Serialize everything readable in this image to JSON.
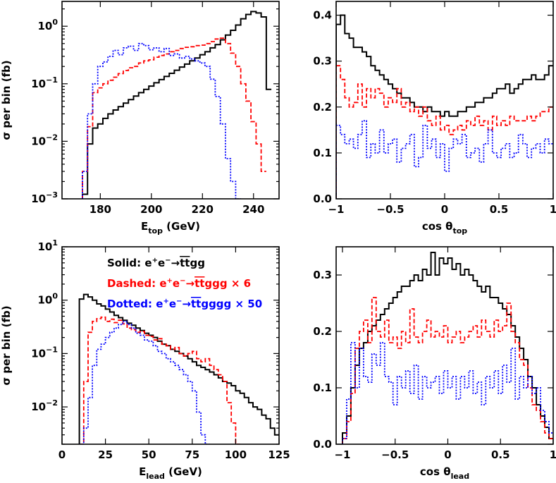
{
  "figure": {
    "legend": {
      "solid": {
        "prefix": "Solid:",
        "process": "e+e- → tt̄gg",
        "color": "#000000"
      },
      "dashed": {
        "prefix": "Dashed:",
        "process": "e+e- → tt̄ggg × 6",
        "color": "#ff0000"
      },
      "dotted": {
        "prefix": "Dotted:",
        "process": "e+e- → tt̄gggg × 50",
        "color": "#0000ff"
      }
    },
    "colors": {
      "solid": "#000000",
      "dashed": "#ff0000",
      "dotted": "#0000ff"
    }
  },
  "chart_data": [
    {
      "id": "e_top",
      "type": "line",
      "step": true,
      "xlabel": "E_top (GeV)",
      "ylabel": "σ per bin (fb)",
      "yscale": "log",
      "xlim": [
        165,
        250
      ],
      "ylim": [
        0.001,
        2.7
      ],
      "xticks": [
        180,
        200,
        220,
        240
      ],
      "yticks": [
        0.001,
        0.01,
        0.1,
        1
      ],
      "ytick_labels": [
        "10^-3",
        "10^-2",
        "10^-1",
        "10^0"
      ],
      "x_start": 173,
      "x_step": 2,
      "series": [
        {
          "style": "solid",
          "values": [
            0.0012,
            0.009,
            0.017,
            0.02,
            0.025,
            0.03,
            0.035,
            0.04,
            0.046,
            0.053,
            0.061,
            0.07,
            0.08,
            0.091,
            0.104,
            0.118,
            0.134,
            0.152,
            0.172,
            0.195,
            0.22,
            0.25,
            0.28,
            0.32,
            0.36,
            0.42,
            0.48,
            0.58,
            0.7,
            0.85,
            1.05,
            1.35,
            1.6,
            1.8,
            1.7,
            1.45,
            0.08
          ]
        },
        {
          "style": "dashed",
          "values": [
            0.003,
            0.018,
            0.07,
            0.085,
            0.1,
            0.115,
            0.13,
            0.15,
            0.17,
            0.19,
            0.2,
            0.23,
            0.25,
            0.26,
            0.29,
            0.31,
            0.33,
            0.36,
            0.38,
            0.41,
            0.43,
            0.44,
            0.46,
            0.47,
            0.5,
            0.54,
            0.6,
            0.62,
            0.5,
            0.34,
            0.2,
            0.1,
            0.05,
            0.022,
            0.009,
            0.003
          ]
        },
        {
          "style": "dotted",
          "values": [
            0.003,
            0.03,
            0.1,
            0.2,
            0.24,
            0.3,
            0.38,
            0.32,
            0.42,
            0.45,
            0.38,
            0.5,
            0.46,
            0.39,
            0.42,
            0.36,
            0.41,
            0.31,
            0.33,
            0.28,
            0.3,
            0.27,
            0.25,
            0.23,
            0.2,
            0.12,
            0.06,
            0.02,
            0.005,
            0.002,
            0.001
          ]
        }
      ]
    },
    {
      "id": "cos_top",
      "type": "line",
      "step": true,
      "xlabel": "cos θ_top",
      "ylabel": "",
      "yscale": "linear",
      "xlim": [
        -1,
        1
      ],
      "ylim": [
        0,
        0.43
      ],
      "xticks": [
        -1,
        -0.5,
        0,
        0.5,
        1
      ],
      "xtick_labels": [
        "−1",
        "−0.5",
        "0",
        "0.5",
        "1"
      ],
      "yticks": [
        0,
        0.1,
        0.2,
        0.3,
        0.4
      ],
      "ytick_labels": [
        "0.0",
        "0.1",
        "0.2",
        "0.3",
        "0.4"
      ],
      "x_start": -1,
      "x_step": 0.04,
      "series": [
        {
          "style": "solid",
          "values": [
            0.38,
            0.4,
            0.36,
            0.35,
            0.33,
            0.33,
            0.32,
            0.31,
            0.29,
            0.28,
            0.27,
            0.26,
            0.25,
            0.24,
            0.23,
            0.22,
            0.22,
            0.21,
            0.2,
            0.2,
            0.19,
            0.2,
            0.19,
            0.19,
            0.18,
            0.19,
            0.18,
            0.18,
            0.19,
            0.19,
            0.2,
            0.2,
            0.21,
            0.21,
            0.22,
            0.22,
            0.23,
            0.24,
            0.24,
            0.25,
            0.23,
            0.24,
            0.25,
            0.26,
            0.26,
            0.27,
            0.26,
            0.26,
            0.27,
            0.29
          ]
        },
        {
          "style": "dashed",
          "values": [
            0.29,
            0.26,
            0.22,
            0.2,
            0.21,
            0.25,
            0.2,
            0.24,
            0.22,
            0.24,
            0.23,
            0.2,
            0.22,
            0.21,
            0.24,
            0.2,
            0.21,
            0.19,
            0.2,
            0.18,
            0.2,
            0.17,
            0.16,
            0.18,
            0.15,
            0.16,
            0.14,
            0.15,
            0.16,
            0.15,
            0.17,
            0.16,
            0.18,
            0.16,
            0.17,
            0.15,
            0.18,
            0.16,
            0.17,
            0.16,
            0.18,
            0.17,
            0.17,
            0.17,
            0.18,
            0.17,
            0.18,
            0.19,
            0.19,
            0.2
          ]
        },
        {
          "style": "dotted",
          "values": [
            0.16,
            0.14,
            0.12,
            0.13,
            0.11,
            0.14,
            0.17,
            0.09,
            0.12,
            0.1,
            0.15,
            0.1,
            0.12,
            0.13,
            0.08,
            0.11,
            0.12,
            0.14,
            0.07,
            0.09,
            0.16,
            0.11,
            0.13,
            0.09,
            0.12,
            0.06,
            0.11,
            0.13,
            0.12,
            0.14,
            0.09,
            0.1,
            0.11,
            0.08,
            0.12,
            0.15,
            0.1,
            0.09,
            0.11,
            0.12,
            0.09,
            0.1,
            0.14,
            0.12,
            0.09,
            0.11,
            0.12,
            0.1,
            0.13,
            0.12
          ]
        }
      ]
    },
    {
      "id": "e_lead",
      "type": "line",
      "step": true,
      "xlabel": "E_lead (GeV)",
      "ylabel": "σ per bin (fb)",
      "yscale": "log",
      "xlim": [
        0,
        125
      ],
      "ylim": [
        0.002,
        10
      ],
      "xticks": [
        0,
        25,
        50,
        75,
        100,
        125
      ],
      "yticks": [
        0.01,
        0.1,
        1,
        10
      ],
      "ytick_labels": [
        "10^-2",
        "10^-1",
        "10^0",
        "10^1"
      ],
      "x_start": 10,
      "x_step": 2.5,
      "series": [
        {
          "style": "solid",
          "values": [
            1.05,
            1.28,
            1.15,
            1.0,
            0.85,
            0.78,
            0.68,
            0.6,
            0.52,
            0.47,
            0.42,
            0.37,
            0.34,
            0.3,
            0.27,
            0.24,
            0.22,
            0.2,
            0.17,
            0.15,
            0.14,
            0.12,
            0.11,
            0.1,
            0.09,
            0.08,
            0.07,
            0.06,
            0.055,
            0.05,
            0.045,
            0.04,
            0.035,
            0.03,
            0.028,
            0.025,
            0.02,
            0.018,
            0.015,
            0.012,
            0.01,
            0.009,
            0.007,
            0.006,
            0.004,
            0.003
          ]
        },
        {
          "style": "dashed",
          "values": [
            0.002,
            0.03,
            0.25,
            0.4,
            0.45,
            0.48,
            0.4,
            0.44,
            0.38,
            0.42,
            0.36,
            0.3,
            0.28,
            0.25,
            0.26,
            0.22,
            0.21,
            0.18,
            0.19,
            0.15,
            0.14,
            0.12,
            0.13,
            0.1,
            0.09,
            0.1,
            0.11,
            0.08,
            0.07,
            0.08,
            0.06,
            0.05,
            0.04,
            0.03,
            0.012,
            0.005,
            0.002
          ]
        },
        {
          "style": "dotted",
          "values": [
            0.002,
            0.004,
            0.015,
            0.06,
            0.12,
            0.15,
            0.2,
            0.25,
            0.3,
            0.35,
            0.4,
            0.35,
            0.3,
            0.24,
            0.22,
            0.18,
            0.17,
            0.14,
            0.11,
            0.1,
            0.08,
            0.07,
            0.06,
            0.05,
            0.04,
            0.03,
            0.02,
            0.008,
            0.003,
            0.002
          ]
        }
      ]
    },
    {
      "id": "cos_lead",
      "type": "line",
      "step": true,
      "xlabel": "cos θ_lead",
      "ylabel": "",
      "yscale": "linear",
      "xlim": [
        -1.06,
        1
      ],
      "ylim": [
        0,
        0.35
      ],
      "xticks": [
        -1,
        -0.5,
        0,
        0.5,
        1
      ],
      "xtick_labels": [
        "−1",
        "−0.5",
        "0",
        "0.5",
        "1"
      ],
      "yticks": [
        0,
        0.1,
        0.2,
        0.3
      ],
      "ytick_labels": [
        "0.0",
        "0.1",
        "0.2",
        "0.3"
      ],
      "x_start": -1,
      "x_step": 0.04,
      "series": [
        {
          "style": "solid",
          "values": [
            0.02,
            0.05,
            0.1,
            0.14,
            0.17,
            0.18,
            0.2,
            0.21,
            0.22,
            0.23,
            0.24,
            0.25,
            0.26,
            0.27,
            0.28,
            0.28,
            0.29,
            0.3,
            0.29,
            0.31,
            0.3,
            0.34,
            0.3,
            0.33,
            0.32,
            0.33,
            0.31,
            0.32,
            0.3,
            0.31,
            0.3,
            0.29,
            0.28,
            0.27,
            0.28,
            0.26,
            0.26,
            0.25,
            0.24,
            0.23,
            0.21,
            0.19,
            0.17,
            0.15,
            0.12,
            0.1,
            0.07,
            0.05,
            0.03,
            0.01
          ]
        },
        {
          "style": "dashed",
          "values": [
            0.01,
            0.04,
            0.09,
            0.17,
            0.2,
            0.22,
            0.18,
            0.26,
            0.2,
            0.19,
            0.22,
            0.18,
            0.19,
            0.17,
            0.2,
            0.18,
            0.24,
            0.19,
            0.18,
            0.2,
            0.22,
            0.19,
            0.2,
            0.19,
            0.21,
            0.18,
            0.19,
            0.2,
            0.18,
            0.19,
            0.2,
            0.21,
            0.19,
            0.22,
            0.2,
            0.19,
            0.22,
            0.2,
            0.21,
            0.25,
            0.2,
            0.18,
            0.15,
            0.14,
            0.1,
            0.07,
            0.06,
            0.04,
            0.02,
            0.01
          ]
        },
        {
          "style": "dotted",
          "values": [
            0.01,
            0.08,
            0.18,
            0.1,
            0.17,
            0.12,
            0.11,
            0.16,
            0.14,
            0.18,
            0.12,
            0.11,
            0.07,
            0.12,
            0.1,
            0.13,
            0.09,
            0.14,
            0.08,
            0.12,
            0.1,
            0.11,
            0.12,
            0.09,
            0.13,
            0.1,
            0.12,
            0.08,
            0.12,
            0.1,
            0.13,
            0.09,
            0.11,
            0.07,
            0.12,
            0.1,
            0.13,
            0.09,
            0.14,
            0.11,
            0.17,
            0.08,
            0.12,
            0.1,
            0.12,
            0.09,
            0.1,
            0.06,
            0.04,
            0.02
          ]
        }
      ]
    }
  ]
}
